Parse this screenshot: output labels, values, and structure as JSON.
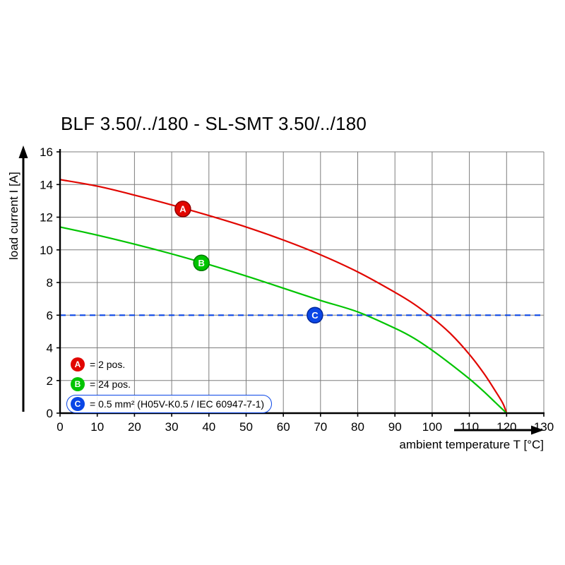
{
  "page": {
    "background": "#ffffff"
  },
  "chart_data": {
    "type": "line",
    "title": "BLF 3.50/../180 - SL-SMT 3.50/../180",
    "xlabel": "ambient temperature T [°C]",
    "ylabel": "load current I [A]",
    "xlim": [
      0,
      130
    ],
    "ylim": [
      0,
      16
    ],
    "xticks": [
      0,
      10,
      20,
      30,
      40,
      50,
      60,
      70,
      80,
      90,
      100,
      110,
      120,
      130
    ],
    "yticks": [
      0,
      2,
      4,
      6,
      8,
      10,
      12,
      14,
      16
    ],
    "grid": true,
    "grid_color": "#7d7d7d",
    "axis_color": "#000000",
    "series": [
      {
        "name": "A",
        "label": "2 pos.",
        "color": "#e10600",
        "marker_stroke": "#8f0000",
        "style": "solid",
        "points": [
          [
            0,
            14.3
          ],
          [
            10,
            13.9
          ],
          [
            20,
            13.35
          ],
          [
            30,
            12.75
          ],
          [
            40,
            12.1
          ],
          [
            50,
            11.4
          ],
          [
            60,
            10.6
          ],
          [
            70,
            9.7
          ],
          [
            80,
            8.65
          ],
          [
            90,
            7.4
          ],
          [
            95,
            6.7
          ],
          [
            100,
            5.85
          ],
          [
            105,
            4.85
          ],
          [
            110,
            3.6
          ],
          [
            114,
            2.4
          ],
          [
            117,
            1.35
          ],
          [
            119,
            0.6
          ],
          [
            120,
            0
          ]
        ],
        "marker": {
          "t": 33,
          "i": 12.5
        }
      },
      {
        "name": "B",
        "label": "24 pos.",
        "color": "#00c400",
        "marker_stroke": "#007a00",
        "style": "solid",
        "points": [
          [
            0,
            11.4
          ],
          [
            10,
            10.9
          ],
          [
            20,
            10.35
          ],
          [
            30,
            9.75
          ],
          [
            40,
            9.1
          ],
          [
            50,
            8.4
          ],
          [
            60,
            7.65
          ],
          [
            70,
            6.9
          ],
          [
            80,
            6.2
          ],
          [
            90,
            5.2
          ],
          [
            95,
            4.6
          ],
          [
            100,
            3.85
          ],
          [
            105,
            3.0
          ],
          [
            110,
            2.1
          ],
          [
            114,
            1.3
          ],
          [
            117,
            0.65
          ],
          [
            120,
            0
          ]
        ],
        "marker": {
          "t": 38,
          "i": 9.2
        }
      },
      {
        "name": "C",
        "label": "0.5 mm² (H05V-K0.5 / IEC 60947-7-1)",
        "color": "#0a46e6",
        "marker_stroke": "#00269a",
        "style": "dashed",
        "points": [
          [
            0,
            6
          ],
          [
            130,
            6
          ]
        ],
        "marker": {
          "t": 68.5,
          "i": 6
        }
      }
    ],
    "legend": [
      {
        "badge": "A",
        "color": "#e10600",
        "text": "= 2 pos.",
        "boxed": false
      },
      {
        "badge": "B",
        "color": "#00c400",
        "text": "= 24 pos.",
        "boxed": false
      },
      {
        "badge": "C",
        "color": "#0a46e6",
        "text": "= 0.5 mm² (H05V-K0.5 / IEC 60947-7-1)",
        "boxed": true
      }
    ],
    "legend_position": "lower-left"
  }
}
